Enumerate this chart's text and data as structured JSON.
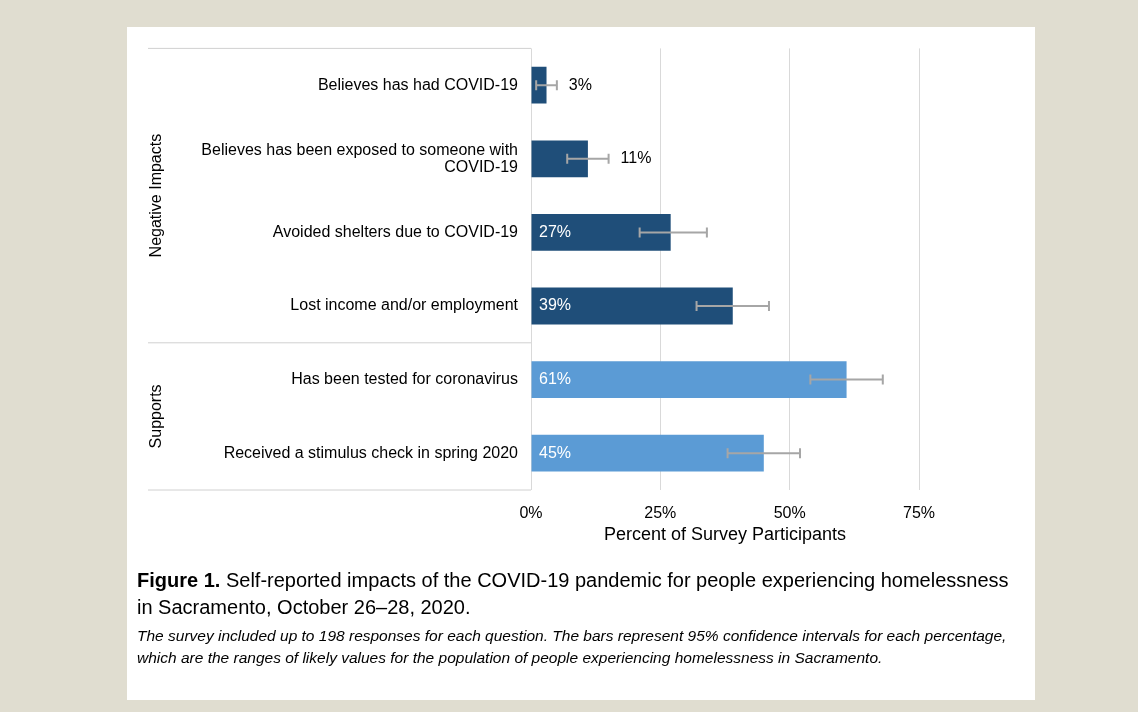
{
  "chart_data": {
    "type": "bar",
    "orientation": "horizontal",
    "title": "Figure 1. Self-reported impacts of the COVID-19 pandemic for people experiencing homelessness in Sacramento, October 26–28, 2020.",
    "xlabel": "Percent of Survey Participants",
    "categories": [
      "Believes has had COVID-19",
      "Believes has been exposed to someone with COVID-19",
      "Avoided shelters due to COVID-19",
      "Lost income and/or employment",
      "Has been tested for coronavirus",
      "Received a stimulus check in spring 2020"
    ],
    "values": [
      3,
      11,
      27,
      39,
      61,
      45
    ],
    "colors": [
      "#1f4e79",
      "#1f4e79",
      "#1f4e79",
      "#1f4e79",
      "#5b9bd5",
      "#5b9bd5"
    ],
    "errors": [
      [
        1,
        5
      ],
      [
        7,
        15
      ],
      [
        21,
        34
      ],
      [
        32,
        46
      ],
      [
        54,
        68
      ],
      [
        38,
        52
      ]
    ],
    "value_labels": [
      "3%",
      "11%",
      "27%",
      "39%",
      "61%",
      "45%"
    ],
    "xlim": [
      0,
      75
    ],
    "xticks": [
      {
        "value": 0,
        "label": "0%"
      },
      {
        "value": 25,
        "label": "25%"
      },
      {
        "value": 50,
        "label": "50%"
      },
      {
        "value": 75,
        "label": "75%"
      }
    ],
    "grid": "x",
    "legend": false,
    "annotations": [
      "Negative Impacts",
      "Supports",
      "The survey included up to 198 responses for each question. The bars represent 95% confidence intervals for each percentage, which are the ranges of likely values for the population of people experiencing homelessness in Sacramento."
    ]
  }
}
